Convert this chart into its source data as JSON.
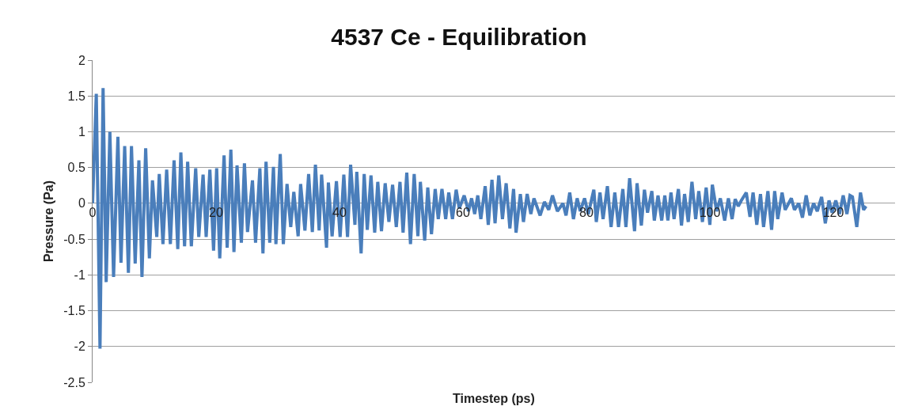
{
  "chart_data": {
    "type": "line",
    "title": "4537 Ce - Equilibration",
    "xlabel": "Timestep (ps)",
    "ylabel": "Pressure (Pa)",
    "xlim": [
      0,
      130
    ],
    "xticks": [
      0,
      20,
      40,
      60,
      80,
      100,
      120
    ],
    "ylim": [
      -2.5,
      2
    ],
    "yticks": [
      -2.5,
      -2,
      -1.5,
      -1,
      -0.5,
      0,
      0.5,
      1,
      1.5,
      2
    ],
    "grid": "y",
    "marker": "none",
    "line_style": "solid",
    "series": [
      {
        "color": "#4a7ebb",
        "x": [
          0,
          0.6,
          1.2,
          1.7,
          2.2,
          2.8,
          3.4,
          4.1,
          4.6,
          5.2,
          5.8,
          6.3,
          6.9,
          7.5,
          8.0,
          8.6,
          9.2,
          9.7,
          10.4,
          10.8,
          11.4,
          12.0,
          12.6,
          13.2,
          13.8,
          14.3,
          14.9,
          15.4,
          16.0,
          16.7,
          17.2,
          17.9,
          18.4,
          19.0,
          19.6,
          20.1,
          20.6,
          21.3,
          21.8,
          22.4,
          22.9,
          23.4,
          24.1,
          24.6,
          25.1,
          25.9,
          26.4,
          27.1,
          27.6,
          28.1,
          28.7,
          29.3,
          29.7,
          30.4,
          30.9,
          31.5,
          32.1,
          32.6,
          33.3,
          33.7,
          34.4,
          35.0,
          35.6,
          36.1,
          36.7,
          37.1,
          37.9,
          38.2,
          38.8,
          39.5,
          40.1,
          40.7,
          41.3,
          41.8,
          42.5,
          42.8,
          43.5,
          44.0,
          44.5,
          45.1,
          45.7,
          46.2,
          46.8,
          47.4,
          48.0,
          48.6,
          49.2,
          49.8,
          50.3,
          50.9,
          51.5,
          52.1,
          52.7,
          53.1,
          53.8,
          54.3,
          54.9,
          55.5,
          56.0,
          56.6,
          57.2,
          57.7,
          58.3,
          58.9,
          59.4,
          60.2,
          60.9,
          61.4,
          61.9,
          62.4,
          62.9,
          63.6,
          64.1,
          64.7,
          65.2,
          65.8,
          66.4,
          67.0,
          67.6,
          68.2,
          68.6,
          69.3,
          69.8,
          70.4,
          71.0,
          71.5,
          72.5,
          73.2,
          73.9,
          74.5,
          75.3,
          76.2,
          76.7,
          77.3,
          77.9,
          78.5,
          79.0,
          79.7,
          80.3,
          81.2,
          81.6,
          82.2,
          82.7,
          83.4,
          84.0,
          84.6,
          85.2,
          85.9,
          86.4,
          87.0,
          87.8,
          88.2,
          88.9,
          89.4,
          89.9,
          90.6,
          91.0,
          91.6,
          92.2,
          92.7,
          93.2,
          93.7,
          94.2,
          94.9,
          95.4,
          95.9,
          96.5,
          97.1,
          97.7,
          98.2,
          98.8,
          99.4,
          100.0,
          100.4,
          101.1,
          101.7,
          102.4,
          103.0,
          103.6,
          104.1,
          104.6,
          105.1,
          105.9,
          106.5,
          107.0,
          107.6,
          108.2,
          108.7,
          109.4,
          110.0,
          110.5,
          111.0,
          111.7,
          112.2,
          113.2,
          113.7,
          114.4,
          115.0,
          115.6,
          116.2,
          116.8,
          117.4,
          118.1,
          118.7,
          119.3,
          119.8,
          120.4,
          121.0,
          121.6,
          122.2,
          122.7,
          123.1,
          123.8,
          124.4,
          124.9,
          125.3
        ],
        "values": [
          0,
          1.53,
          -2.03,
          1.61,
          -1.1,
          1.0,
          -1.03,
          0.93,
          -0.83,
          0.8,
          -0.97,
          0.8,
          -0.84,
          0.6,
          -1.03,
          0.77,
          -0.77,
          0.32,
          -0.47,
          0.41,
          -0.57,
          0.47,
          -0.57,
          0.6,
          -0.64,
          0.71,
          -0.6,
          0.58,
          -0.6,
          0.49,
          -0.47,
          0.4,
          -0.47,
          0.47,
          -0.66,
          0.49,
          -0.77,
          0.67,
          -0.62,
          0.75,
          -0.68,
          0.53,
          -0.55,
          0.56,
          -0.4,
          0.32,
          -0.55,
          0.49,
          -0.7,
          0.58,
          -0.55,
          0.51,
          -0.57,
          0.69,
          -0.57,
          0.27,
          -0.33,
          0.16,
          -0.46,
          0.27,
          -0.38,
          0.41,
          -0.4,
          0.54,
          -0.38,
          0.4,
          -0.62,
          0.29,
          -0.46,
          0.31,
          -0.47,
          0.4,
          -0.47,
          0.54,
          -0.3,
          0.44,
          -0.7,
          0.41,
          -0.37,
          0.39,
          -0.41,
          0.3,
          -0.39,
          0.28,
          -0.26,
          0.26,
          -0.33,
          0.3,
          -0.41,
          0.43,
          -0.57,
          0.41,
          -0.46,
          0.3,
          -0.52,
          0.22,
          -0.43,
          0.2,
          -0.22,
          0.2,
          -0.22,
          0.15,
          -0.22,
          0.19,
          -0.07,
          0.11,
          -0.11,
          0.07,
          -0.15,
          0.11,
          -0.22,
          0.24,
          -0.3,
          0.33,
          -0.28,
          0.39,
          -0.22,
          0.28,
          -0.35,
          0.2,
          -0.41,
          0.13,
          -0.26,
          0.13,
          -0.15,
          0.07,
          -0.17,
          0.02,
          -0.09,
          0.11,
          -0.11,
          0,
          -0.17,
          0.15,
          -0.22,
          0.07,
          -0.11,
          0.07,
          -0.15,
          0.19,
          -0.26,
          0.15,
          -0.22,
          0.24,
          -0.33,
          0.15,
          -0.33,
          0.2,
          -0.33,
          0.35,
          -0.39,
          0.28,
          -0.31,
          0.19,
          -0.13,
          0.17,
          -0.24,
          0.11,
          -0.24,
          0.11,
          -0.24,
          0.15,
          -0.22,
          0.2,
          -0.31,
          0.13,
          -0.26,
          0.3,
          -0.22,
          0.17,
          -0.26,
          0.22,
          -0.3,
          0.26,
          -0.11,
          0.07,
          -0.24,
          0.07,
          -0.22,
          0.06,
          -0.04,
          0.04,
          0.15,
          -0.19,
          0.15,
          -0.3,
          0.13,
          -0.33,
          0.17,
          -0.37,
          0.17,
          -0.22,
          0.15,
          -0.09,
          0.07,
          -0.09,
          0,
          -0.2,
          0.11,
          -0.17,
          0,
          -0.11,
          0.09,
          -0.28,
          0.04,
          -0.13,
          0.04,
          -0.15,
          0.11,
          -0.15,
          0.11,
          0.09,
          -0.33,
          0.15,
          -0.09,
          -0.04
        ]
      }
    ]
  }
}
